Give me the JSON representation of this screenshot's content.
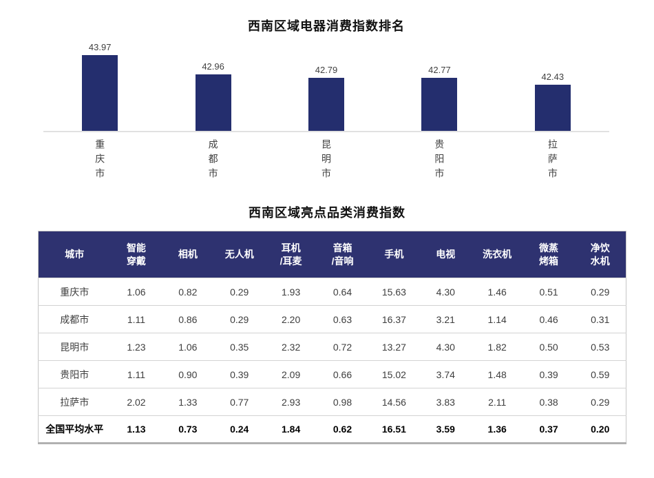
{
  "colors": {
    "bar": "#242e6e",
    "table_header_bg": "#2e3270",
    "table_header_text": "#ffffff",
    "axis_line": "#e1e1e1",
    "row_divider": "#d2d2d2"
  },
  "chart_data": [
    {
      "type": "bar",
      "title": "西南区域电器消费指数排名",
      "categories": [
        "重庆市",
        "成都市",
        "昆明市",
        "贵阳市",
        "拉萨市"
      ],
      "values": [
        43.97,
        42.96,
        42.79,
        42.77,
        42.43
      ],
      "value_labels": [
        "43.97",
        "42.96",
        "42.79",
        "42.77",
        "42.43"
      ],
      "xlabel": "",
      "ylabel": "",
      "ylim": [
        40,
        44.5
      ],
      "grid": false,
      "legend": false,
      "data_labels": "above each bar"
    },
    {
      "type": "table",
      "title": "西南区域亮点品类消费指数",
      "columns": [
        "城市",
        "智能\n穿戴",
        "相机",
        "无人机",
        "耳机\n/耳麦",
        "音箱\n/音响",
        "手机",
        "电视",
        "洗衣机",
        "微蒸\n烤箱",
        "净饮\n水机"
      ],
      "rows": [
        {
          "cells": [
            "重庆市",
            "1.06",
            "0.82",
            "0.29",
            "1.93",
            "0.64",
            "15.63",
            "4.30",
            "1.46",
            "0.51",
            "0.29"
          ],
          "bold": false
        },
        {
          "cells": [
            "成都市",
            "1.11",
            "0.86",
            "0.29",
            "2.20",
            "0.63",
            "16.37",
            "3.21",
            "1.14",
            "0.46",
            "0.31"
          ],
          "bold": false
        },
        {
          "cells": [
            "昆明市",
            "1.23",
            "1.06",
            "0.35",
            "2.32",
            "0.72",
            "13.27",
            "4.30",
            "1.82",
            "0.50",
            "0.53"
          ],
          "bold": false
        },
        {
          "cells": [
            "贵阳市",
            "1.11",
            "0.90",
            "0.39",
            "2.09",
            "0.66",
            "15.02",
            "3.74",
            "1.48",
            "0.39",
            "0.59"
          ],
          "bold": false
        },
        {
          "cells": [
            "拉萨市",
            "2.02",
            "1.33",
            "0.77",
            "2.93",
            "0.98",
            "14.56",
            "3.83",
            "2.11",
            "0.38",
            "0.29"
          ],
          "bold": false
        },
        {
          "cells": [
            "全国平均水平",
            "1.13",
            "0.73",
            "0.24",
            "1.84",
            "0.62",
            "16.51",
            "3.59",
            "1.36",
            "0.37",
            "0.20"
          ],
          "bold": true
        }
      ]
    }
  ]
}
